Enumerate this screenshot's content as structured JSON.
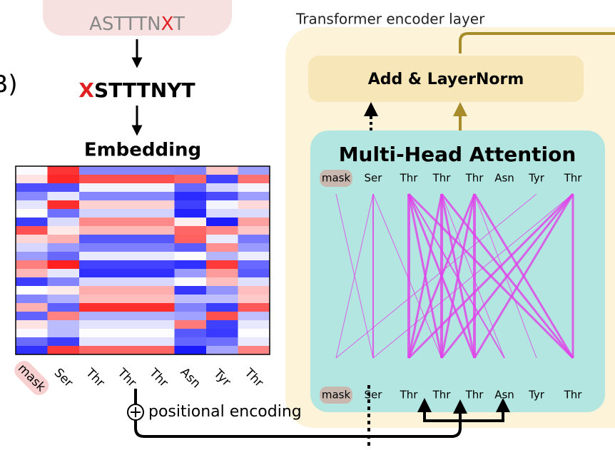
{
  "panel_label": "B)",
  "input": {
    "parts": [
      "ASTTTN",
      "X",
      "T"
    ]
  },
  "masked": {
    "parts": [
      "X",
      "STTTNYT"
    ]
  },
  "embedding": {
    "title": "Embedding",
    "tokens": [
      "mask",
      "Ser",
      "Thr",
      "Thr",
      "Thr",
      "Asn",
      "Tyr",
      "Thr"
    ]
  },
  "encoder": {
    "title": "Transformer encoder layer",
    "add_norm": "Add & LayerNorm",
    "attention": {
      "title": "Multi-Head Attention",
      "top_tokens": [
        "mask",
        "Ser",
        "Thr",
        "Thr",
        "Thr",
        "Asn",
        "Tyr",
        "Thr"
      ],
      "bottom_tokens": [
        "mask",
        "Ser",
        "Thr",
        "Thr",
        "Thr",
        "Asn",
        "Tyr",
        "Thr"
      ]
    }
  },
  "positional_encoding": "positional encoding"
}
